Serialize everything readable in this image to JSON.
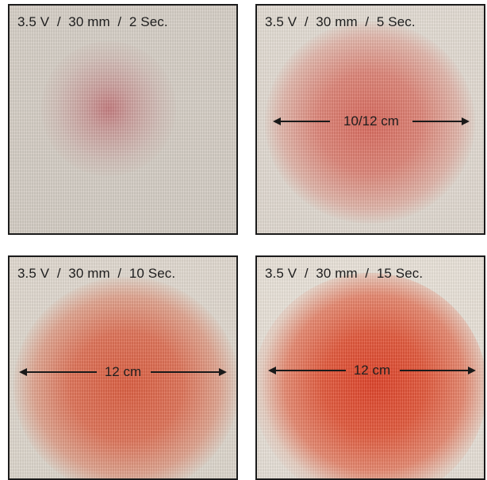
{
  "panels": [
    {
      "caption": "3.5 V  /  30 mm  /  2 Sec.",
      "measurement": ""
    },
    {
      "caption": "3.5 V  /  30 mm  /  5 Sec.",
      "measurement": "10/12 cm"
    },
    {
      "caption": "3.5 V  /  30 mm  /  10 Sec.",
      "measurement": "12 cm"
    },
    {
      "caption": "3.5 V  /  30 mm  /  15 Sec.",
      "measurement": "12 cm"
    }
  ],
  "colors": {
    "fabric": "#ddd6cc",
    "stain": "#d9533f",
    "border": "#1b1b1b",
    "text": "#1e1e1e"
  }
}
